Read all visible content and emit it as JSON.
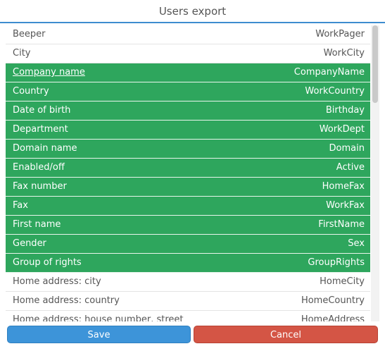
{
  "dialog": {
    "title": "Users export"
  },
  "fields": [
    {
      "label": "Beeper",
      "value": "WorkPager",
      "selected": false
    },
    {
      "label": "City",
      "value": "WorkCity",
      "selected": false
    },
    {
      "label": "Company name",
      "value": "CompanyName",
      "selected": true,
      "focused": true
    },
    {
      "label": "Country",
      "value": "WorkCountry",
      "selected": true
    },
    {
      "label": "Date of birth",
      "value": "Birthday",
      "selected": true
    },
    {
      "label": "Department",
      "value": "WorkDept",
      "selected": true
    },
    {
      "label": "Domain name",
      "value": "Domain",
      "selected": true
    },
    {
      "label": "Enabled/off",
      "value": "Active",
      "selected": true
    },
    {
      "label": "Fax number",
      "value": "HomeFax",
      "selected": true
    },
    {
      "label": "Fax",
      "value": "WorkFax",
      "selected": true
    },
    {
      "label": "First name",
      "value": "FirstName",
      "selected": true
    },
    {
      "label": "Gender",
      "value": "Sex",
      "selected": true
    },
    {
      "label": "Group of rights",
      "value": "GroupRights",
      "selected": true
    },
    {
      "label": "Home address: city",
      "value": "HomeCity",
      "selected": false
    },
    {
      "label": "Home address: country",
      "value": "HomeCountry",
      "selected": false
    },
    {
      "label": "Home address: house number, street",
      "value": "HomeAddress",
      "selected": false
    }
  ],
  "buttons": {
    "save_label": "Save",
    "cancel_label": "Cancel"
  },
  "colors": {
    "accent": "#3d8ccf",
    "selected_row": "#2ea65d",
    "save_button": "#3d94d9",
    "cancel_button": "#d45545"
  }
}
